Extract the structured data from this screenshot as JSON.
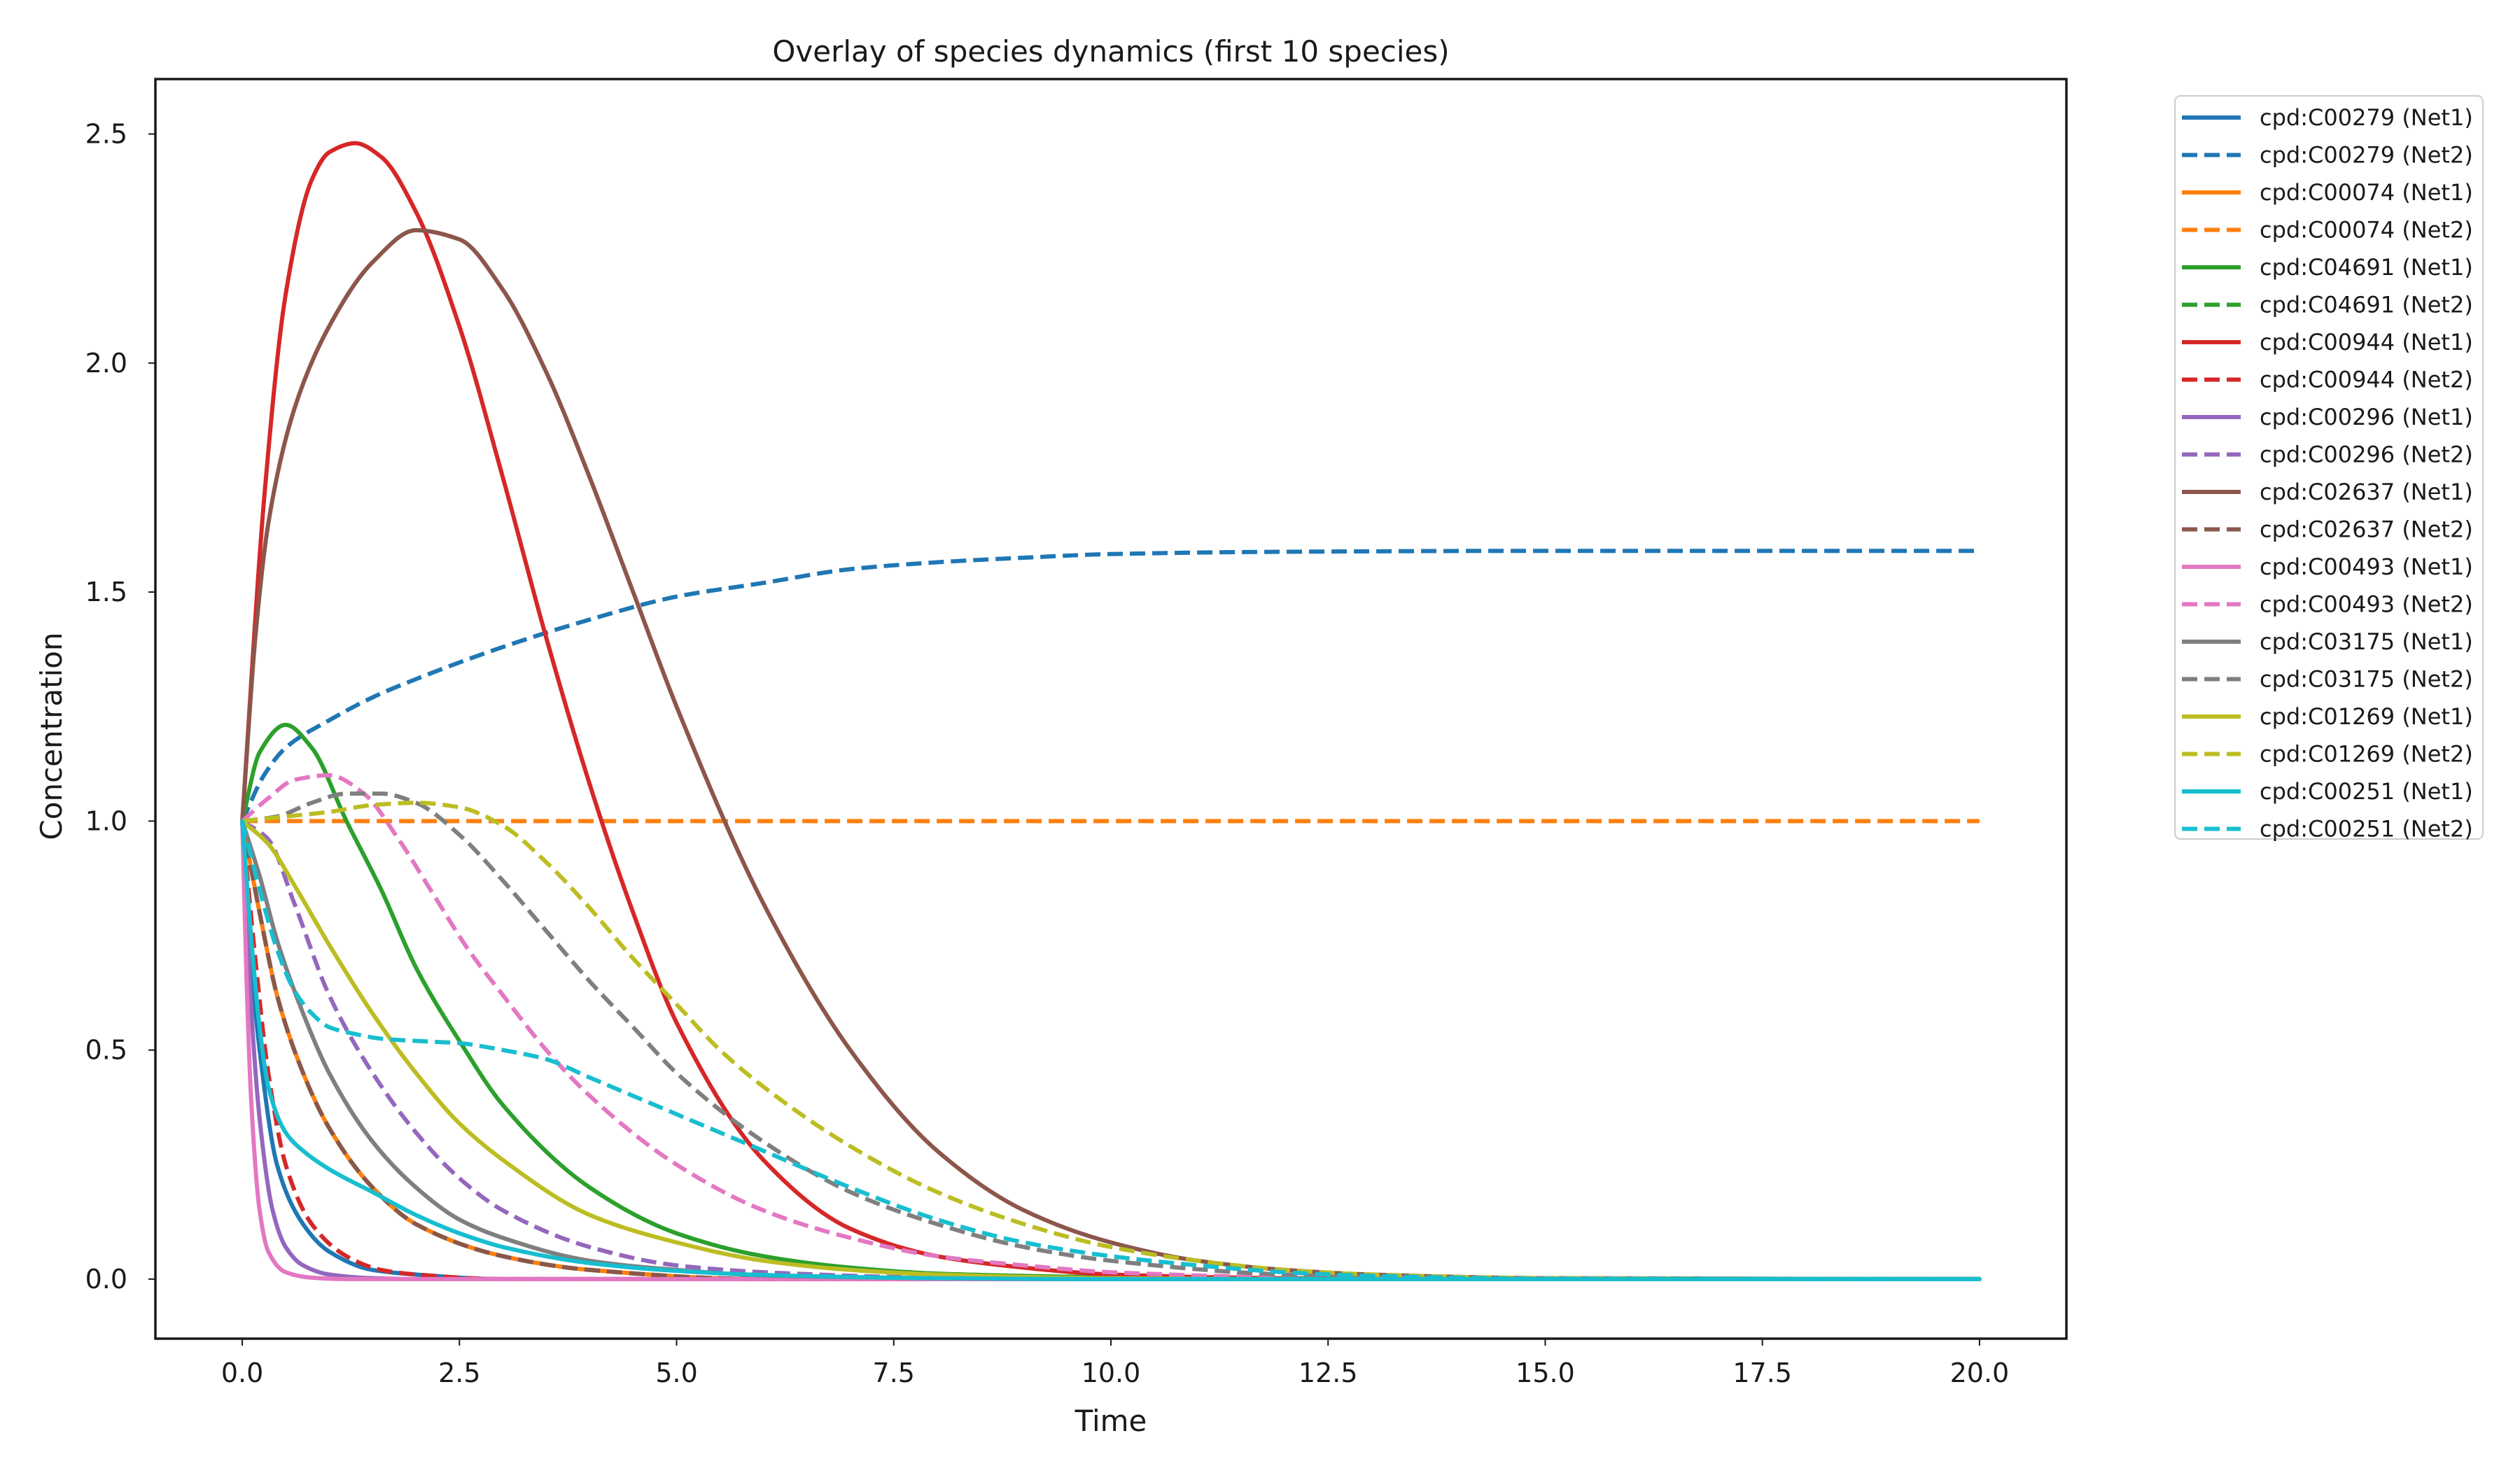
{
  "chart_data": {
    "type": "line",
    "title": "Overlay of species dynamics (first 10 species)",
    "xlabel": "Time",
    "ylabel": "Concentration",
    "xlim": [
      -1.0,
      21.0
    ],
    "ylim": [
      -0.13,
      2.62
    ],
    "xticks": [
      0.0,
      2.5,
      5.0,
      7.5,
      10.0,
      12.5,
      15.0,
      17.5,
      20.0
    ],
    "xtick_labels": [
      "0.0",
      "2.5",
      "5.0",
      "7.5",
      "10.0",
      "12.5",
      "15.0",
      "17.5",
      "20.0"
    ],
    "yticks": [
      0.0,
      0.5,
      1.0,
      1.5,
      2.0,
      2.5
    ],
    "ytick_labels": [
      "0.0",
      "0.5",
      "1.0",
      "1.5",
      "2.0",
      "2.5"
    ],
    "grid": false,
    "legend_placement": "outside upper right",
    "series": [
      {
        "name": "cpd:C00279 (Net1)",
        "color": "#1f77b4",
        "dash": "solid",
        "x": [
          0,
          0.05,
          0.1,
          0.2,
          0.4,
          0.7,
          1,
          1.5,
          2,
          3,
          5,
          8,
          20
        ],
        "y": [
          1.0,
          0.85,
          0.7,
          0.5,
          0.25,
          0.12,
          0.06,
          0.02,
          0.01,
          0.0,
          0.0,
          0.0,
          0.0
        ]
      },
      {
        "name": "cpd:C00279 (Net2)",
        "color": "#1f77b4",
        "dash": "dash",
        "x": [
          0,
          0.25,
          0.5,
          1,
          1.5,
          2,
          3,
          4,
          5,
          6,
          7,
          8,
          9,
          10,
          12,
          15,
          20
        ],
        "y": [
          1.0,
          1.1,
          1.16,
          1.22,
          1.27,
          1.31,
          1.38,
          1.44,
          1.49,
          1.52,
          1.55,
          1.565,
          1.575,
          1.583,
          1.588,
          1.59,
          1.59
        ]
      },
      {
        "name": "cpd:C00074 (Net1)",
        "color": "#ff7f0e",
        "dash": "solid",
        "x": [
          0,
          0.2,
          0.4,
          0.7,
          1,
          1.5,
          2,
          3,
          4,
          6,
          10,
          20
        ],
        "y": [
          1.0,
          0.8,
          0.62,
          0.45,
          0.33,
          0.2,
          0.12,
          0.05,
          0.02,
          0.0,
          0.0,
          0.0
        ]
      },
      {
        "name": "cpd:C00074 (Net2)",
        "color": "#ff7f0e",
        "dash": "dash",
        "x": [
          0,
          20
        ],
        "y": [
          1.0,
          1.0
        ]
      },
      {
        "name": "cpd:C04691 (Net1)",
        "color": "#2ca02c",
        "dash": "solid",
        "x": [
          0,
          0.2,
          0.5,
          0.8,
          1.2,
          1.6,
          2,
          2.5,
          3,
          4,
          5,
          6,
          7,
          8,
          10,
          12,
          15,
          20
        ],
        "y": [
          1.0,
          1.15,
          1.21,
          1.16,
          1.0,
          0.85,
          0.68,
          0.52,
          0.38,
          0.2,
          0.1,
          0.05,
          0.025,
          0.012,
          0.004,
          0.001,
          0.0,
          0.0
        ]
      },
      {
        "name": "cpd:C04691 (Net2)",
        "color": "#2ca02c",
        "dash": "dash",
        "x": [
          0,
          0.2,
          0.4,
          0.7,
          1,
          1.5,
          2,
          3,
          4,
          6,
          10,
          20
        ],
        "y": [
          1.0,
          0.8,
          0.62,
          0.45,
          0.33,
          0.2,
          0.12,
          0.05,
          0.02,
          0.0,
          0.0,
          0.0
        ]
      },
      {
        "name": "cpd:C00944 (Net1)",
        "color": "#d62728",
        "dash": "solid",
        "x": [
          0,
          0.25,
          0.5,
          0.8,
          1.0,
          1.3,
          1.6,
          2.0,
          2.5,
          3.0,
          3.5,
          4.0,
          4.5,
          5.0,
          6.0,
          7.0,
          8.0,
          9.0,
          10.0,
          12.0,
          15.0,
          20.0
        ],
        "y": [
          1.0,
          1.7,
          2.15,
          2.4,
          2.46,
          2.48,
          2.45,
          2.33,
          2.08,
          1.75,
          1.4,
          1.08,
          0.8,
          0.56,
          0.26,
          0.11,
          0.05,
          0.025,
          0.01,
          0.002,
          0.0,
          0.0
        ]
      },
      {
        "name": "cpd:C00944 (Net2)",
        "color": "#d62728",
        "dash": "dash",
        "x": [
          0,
          0.15,
          0.3,
          0.5,
          0.8,
          1.2,
          1.6,
          2,
          3,
          4,
          6,
          20
        ],
        "y": [
          1.0,
          0.7,
          0.45,
          0.25,
          0.12,
          0.05,
          0.02,
          0.01,
          0.0,
          0.0,
          0.0,
          0.0
        ]
      },
      {
        "name": "cpd:C00296 (Net1)",
        "color": "#9467bd",
        "dash": "solid",
        "x": [
          0,
          0.1,
          0.2,
          0.35,
          0.5,
          0.7,
          1.0,
          1.5,
          2,
          3,
          20
        ],
        "y": [
          1.0,
          0.6,
          0.35,
          0.15,
          0.07,
          0.03,
          0.01,
          0.002,
          0.0,
          0.0,
          0.0
        ]
      },
      {
        "name": "cpd:C00296 (Net2)",
        "color": "#9467bd",
        "dash": "dash",
        "x": [
          0,
          0.3,
          0.6,
          1.0,
          1.5,
          2,
          2.5,
          3,
          4,
          5,
          6,
          8,
          10,
          20
        ],
        "y": [
          1.0,
          0.96,
          0.82,
          0.62,
          0.45,
          0.32,
          0.22,
          0.15,
          0.07,
          0.03,
          0.015,
          0.003,
          0.0,
          0.0
        ]
      },
      {
        "name": "cpd:C02637 (Net1)",
        "color": "#8c564b",
        "dash": "solid",
        "x": [
          0,
          0.15,
          0.3,
          0.6,
          1.0,
          1.5,
          2.0,
          2.5,
          3.0,
          3.5,
          4.0,
          4.5,
          5.0,
          6.0,
          7.0,
          8.0,
          9.0,
          10.0,
          11.0,
          12.0,
          13.0,
          15.0,
          20.0
        ],
        "y": [
          1.0,
          1.4,
          1.65,
          1.9,
          2.08,
          2.22,
          2.29,
          2.27,
          2.16,
          1.98,
          1.75,
          1.5,
          1.25,
          0.82,
          0.5,
          0.28,
          0.15,
          0.08,
          0.04,
          0.02,
          0.01,
          0.002,
          0.0
        ]
      },
      {
        "name": "cpd:C02637 (Net2)",
        "color": "#8c564b",
        "dash": "dash",
        "x": [
          0,
          0.2,
          0.4,
          0.7,
          1,
          1.5,
          2,
          3,
          4,
          6,
          10,
          20
        ],
        "y": [
          1.0,
          0.8,
          0.62,
          0.45,
          0.33,
          0.2,
          0.12,
          0.05,
          0.02,
          0.0,
          0.0,
          0.0
        ]
      },
      {
        "name": "cpd:C00493 (Net1)",
        "color": "#e377c2",
        "dash": "solid",
        "x": [
          0,
          0.05,
          0.1,
          0.2,
          0.3,
          0.5,
          0.8,
          1.2,
          2,
          20
        ],
        "y": [
          1.0,
          0.65,
          0.4,
          0.15,
          0.06,
          0.015,
          0.003,
          0.0,
          0.0,
          0.0
        ]
      },
      {
        "name": "cpd:C00493 (Net2)",
        "color": "#e377c2",
        "dash": "dash",
        "x": [
          0,
          0.3,
          0.6,
          1.0,
          1.4,
          1.8,
          2.2,
          2.6,
          3.0,
          3.5,
          4.0,
          5.0,
          6.0,
          7.0,
          8.0,
          9.0,
          10.0,
          12.0,
          15.0,
          20.0
        ],
        "y": [
          1.0,
          1.05,
          1.09,
          1.1,
          1.06,
          0.96,
          0.84,
          0.72,
          0.62,
          0.5,
          0.4,
          0.25,
          0.15,
          0.09,
          0.05,
          0.03,
          0.015,
          0.004,
          0.0,
          0.0
        ]
      },
      {
        "name": "cpd:C03175 (Net1)",
        "color": "#7f7f7f",
        "dash": "solid",
        "x": [
          0,
          0.2,
          0.4,
          0.7,
          1.0,
          1.5,
          2,
          2.5,
          3,
          4,
          5,
          6,
          8,
          10,
          20
        ],
        "y": [
          1.0,
          0.88,
          0.74,
          0.58,
          0.45,
          0.3,
          0.2,
          0.13,
          0.09,
          0.04,
          0.02,
          0.008,
          0.002,
          0.0,
          0.0
        ]
      },
      {
        "name": "cpd:C03175 (Net2)",
        "color": "#7f7f7f",
        "dash": "dash",
        "x": [
          0,
          0.4,
          0.8,
          1.2,
          1.6,
          2.0,
          2.5,
          3.0,
          3.5,
          4.0,
          4.5,
          5.0,
          6.0,
          7.0,
          8.0,
          9.0,
          10.0,
          12.0,
          14.0,
          20.0
        ],
        "y": [
          1.0,
          1.01,
          1.04,
          1.06,
          1.06,
          1.04,
          0.97,
          0.87,
          0.76,
          0.65,
          0.55,
          0.45,
          0.3,
          0.19,
          0.12,
          0.07,
          0.04,
          0.01,
          0.002,
          0.0
        ]
      },
      {
        "name": "cpd:C01269 (Net1)",
        "color": "#bcbd22",
        "dash": "solid",
        "x": [
          0,
          0.3,
          0.6,
          1.0,
          1.5,
          2.0,
          2.5,
          3.0,
          4.0,
          5.0,
          6.0,
          7.0,
          8.0,
          10.0,
          12.0,
          20.0
        ],
        "y": [
          1.0,
          0.95,
          0.86,
          0.73,
          0.58,
          0.45,
          0.34,
          0.26,
          0.14,
          0.08,
          0.04,
          0.02,
          0.01,
          0.002,
          0.0,
          0.0
        ]
      },
      {
        "name": "cpd:C01269 (Net2)",
        "color": "#bcbd22",
        "dash": "dash",
        "x": [
          0,
          0.5,
          1.0,
          1.5,
          2.0,
          2.5,
          3.0,
          3.5,
          4.0,
          4.5,
          5.0,
          5.5,
          6.0,
          7.0,
          8.0,
          9.0,
          10.0,
          11.0,
          12.0,
          13.0,
          15.0,
          20.0
        ],
        "y": [
          1.0,
          1.01,
          1.02,
          1.035,
          1.04,
          1.03,
          0.99,
          0.91,
          0.81,
          0.7,
          0.6,
          0.5,
          0.42,
          0.29,
          0.19,
          0.12,
          0.07,
          0.04,
          0.02,
          0.01,
          0.002,
          0.0
        ]
      },
      {
        "name": "cpd:C00251 (Net1)",
        "color": "#17becf",
        "dash": "solid",
        "x": [
          0,
          0.1,
          0.2,
          0.3,
          0.5,
          0.7,
          1.0,
          1.5,
          2.0,
          2.5,
          3.0,
          4.0,
          5.0,
          6.0,
          8.0,
          10.0,
          12.0,
          20.0
        ],
        "y": [
          1.0,
          0.75,
          0.55,
          0.42,
          0.32,
          0.28,
          0.24,
          0.19,
          0.14,
          0.1,
          0.07,
          0.035,
          0.018,
          0.009,
          0.002,
          0.0,
          0.0,
          0.0
        ]
      },
      {
        "name": "cpd:C00251 (Net2)",
        "color": "#17becf",
        "dash": "dash",
        "x": [
          0,
          0.2,
          0.4,
          0.6,
          0.8,
          1.0,
          1.3,
          1.6,
          2.0,
          2.5,
          3.0,
          3.5,
          4.0,
          4.5,
          5.0,
          5.5,
          6.0,
          7.0,
          8.0,
          9.0,
          10.0,
          11.0,
          12.0,
          13.0,
          15.0,
          20.0
        ],
        "y": [
          1.0,
          0.85,
          0.72,
          0.63,
          0.58,
          0.55,
          0.535,
          0.525,
          0.52,
          0.515,
          0.5,
          0.48,
          0.44,
          0.4,
          0.36,
          0.32,
          0.28,
          0.2,
          0.13,
          0.08,
          0.05,
          0.03,
          0.015,
          0.007,
          0.001,
          0.0
        ]
      }
    ]
  }
}
